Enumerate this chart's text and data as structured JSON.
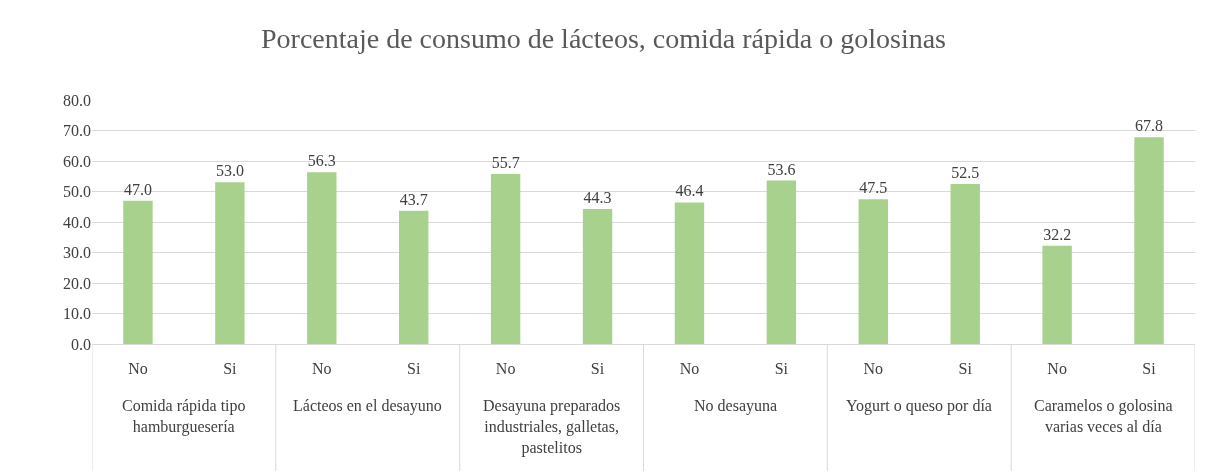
{
  "chart_data": {
    "type": "bar",
    "title": "Porcentaje de consumo de lácteos, comida rápida o golosinas",
    "categories": [
      "No",
      "Si",
      "No",
      "Si",
      "No",
      "Si",
      "No",
      "Si",
      "No",
      "Si",
      "No",
      "Si"
    ],
    "values": [
      47.0,
      53.0,
      56.3,
      43.7,
      55.7,
      44.3,
      46.4,
      53.6,
      47.5,
      52.5,
      32.2,
      67.8
    ],
    "value_labels": [
      "47.0",
      "53.0",
      "56.3",
      "43.7",
      "55.7",
      "44.3",
      "46.4",
      "53.6",
      "47.5",
      "52.5",
      "32.2",
      "67.8"
    ],
    "color": "#a9d18e",
    "ylim": [
      0,
      80
    ],
    "yticks": [
      {
        "value": 0,
        "label": "0.0"
      },
      {
        "value": 10,
        "label": "10.0"
      },
      {
        "value": 20,
        "label": "20.0"
      },
      {
        "value": 30,
        "label": "30.0"
      },
      {
        "value": 40,
        "label": "40.0"
      },
      {
        "value": 50,
        "label": "50.0"
      },
      {
        "value": 60,
        "label": "60.0"
      },
      {
        "value": 70,
        "label": "70.0"
      },
      {
        "value": 80,
        "label": "80.0"
      }
    ],
    "grid": "y",
    "annotations": [
      "Comida rápida tipo hamburguesería",
      "Lácteos en el desayuno",
      "Desayuna preparados industriales, galletas, pastelitos",
      "No desayuna",
      "Yogurt o queso por día",
      "Caramelos o golosina varias veces al día"
    ]
  }
}
